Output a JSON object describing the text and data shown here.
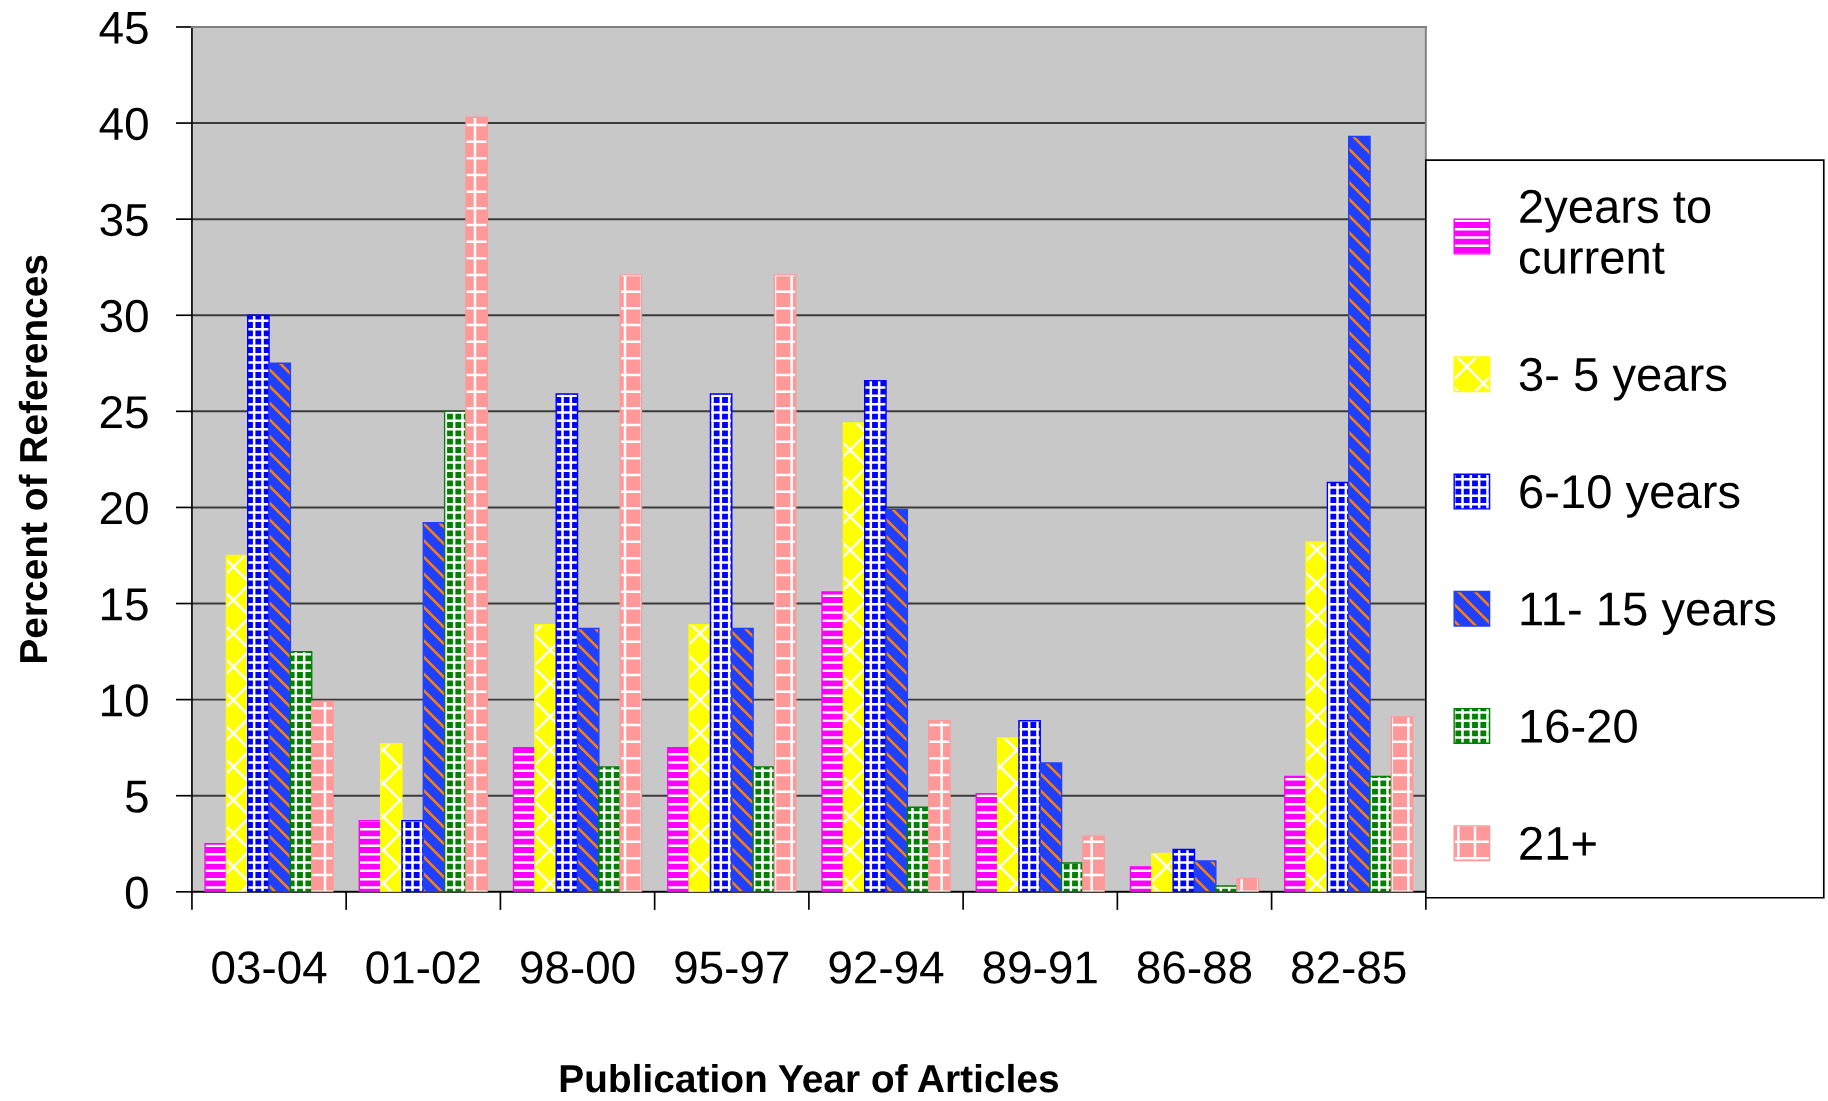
{
  "chart_data": {
    "type": "bar",
    "xlabel": "Publication Year of Articles",
    "ylabel": "Percent of References",
    "categories": [
      "03-04",
      "01-02",
      "98-00",
      "95-97",
      "92-94",
      "89-91",
      "86-88",
      "82-85"
    ],
    "series": [
      {
        "name": "2years to\ncurrent",
        "color": "#ff00ff",
        "values": [
          2.5,
          3.7,
          7.5,
          7.5,
          15.6,
          5.1,
          1.3,
          6.0
        ]
      },
      {
        "name": "3- 5 years",
        "color": "#ffff00",
        "values": [
          17.5,
          7.7,
          13.9,
          13.9,
          24.4,
          8.0,
          2.0,
          18.2
        ]
      },
      {
        "name": "6-10 years",
        "color": "#0000ff",
        "values": [
          30.0,
          3.7,
          25.9,
          25.9,
          26.6,
          8.9,
          2.2,
          21.3
        ]
      },
      {
        "name": "11- 15 years",
        "color": "#2040ff",
        "values": [
          27.5,
          19.2,
          13.7,
          13.7,
          19.9,
          6.7,
          1.6,
          39.3
        ]
      },
      {
        "name": "16-20",
        "color": "#008000",
        "values": [
          12.5,
          25.0,
          6.5,
          6.5,
          4.4,
          1.5,
          0.3,
          6.0
        ]
      },
      {
        "name": "21+",
        "color": "#ff9999",
        "values": [
          9.9,
          40.3,
          32.1,
          32.1,
          8.9,
          2.9,
          0.7,
          9.1
        ]
      }
    ],
    "ylim": [
      0,
      45
    ],
    "yticks": [
      0,
      5,
      10,
      15,
      20,
      25,
      30,
      35,
      40,
      45
    ],
    "grid": "y",
    "legend": "right"
  }
}
